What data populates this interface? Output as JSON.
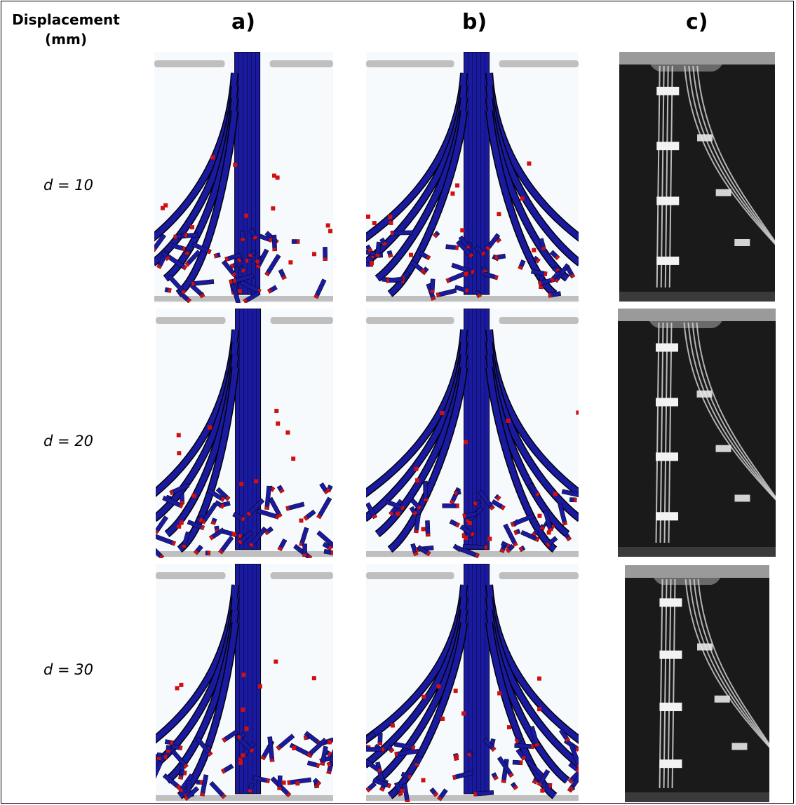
{
  "header": {
    "displacement_label_line1": "Displacement",
    "displacement_label_line2": "(mm)",
    "columns": [
      "a)",
      "b)",
      "c)"
    ]
  },
  "rows": [
    {
      "label": "d = 10"
    },
    {
      "label": "d = 20"
    },
    {
      "label": "d = 30"
    }
  ],
  "colors": {
    "fiber_blue": "#1a1aa0",
    "fiber_edge_black": "#000000",
    "fragment_red": "#d01010",
    "die_gray": "#bfbfbf",
    "photo_background": "#1a1a1a",
    "photo_fiber": "#d8d8d8"
  }
}
